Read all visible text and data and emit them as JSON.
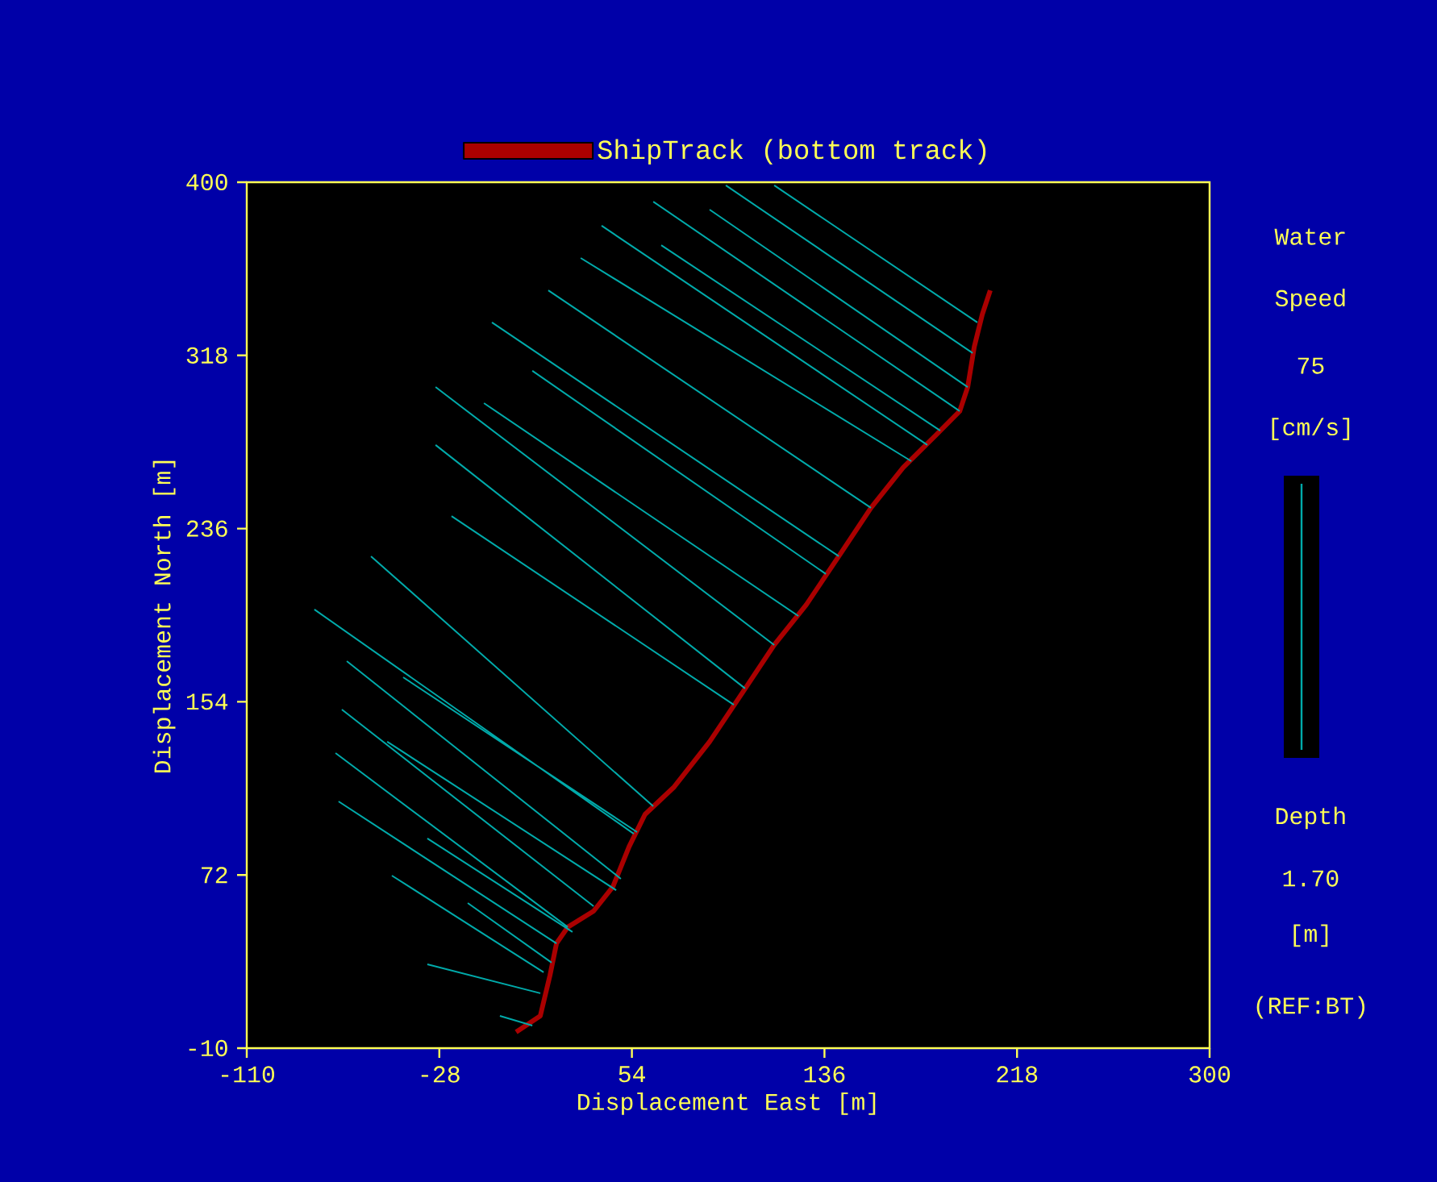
{
  "chart_data": {
    "type": "line",
    "xlabel": "Displacement East [m]",
    "ylabel": "Displacement North [m]",
    "xlim": [
      -110,
      300
    ],
    "ylim": [
      -10,
      400
    ],
    "xticks": [
      -110,
      -28,
      54,
      136,
      218,
      300
    ],
    "yticks": [
      -10,
      72,
      154,
      236,
      318,
      400
    ],
    "grid": false,
    "legend": "top",
    "series": [
      {
        "name": "ShipTrack (bottom track)",
        "color": "#aa0000",
        "x": [
          4.7,
          15.0,
          19.1,
          21.9,
          26.7,
          37.7,
          45.9,
          52.8,
          59.6,
          72.0,
          87.1,
          100.9,
          114.6,
          128.3,
          142.1,
          155.8,
          169.5,
          183.3,
          193.6,
          197.0,
          199.8,
          203.2,
          206.6
        ],
        "values": [
          -2.4,
          5.3,
          24.4,
          39.6,
          47.3,
          54.9,
          66.4,
          85.4,
          100.7,
          113.7,
          135.1,
          158.0,
          180.9,
          200.0,
          222.9,
          245.8,
          264.9,
          280.1,
          291.6,
          303.0,
          322.1,
          337.4,
          348.8
        ]
      },
      {
        "color": "#00aaaa",
        "x": [
          11.6,
          -2.2,
          null,
          15.0,
          -33.1,
          null,
          16.4,
          -48.2,
          null,
          19.8,
          -15.9,
          null,
          21.9,
          -70.9,
          null,
          26.7,
          -72.2,
          null,
          28.7,
          -33.1,
          null,
          37.7,
          -69.5,
          null,
          47.3,
          -50.2,
          null,
          49.3,
          -67.4,
          null,
          54.8,
          -81.2,
          null,
          56.2,
          -43.4,
          null,
          63.1,
          -57.1,
          null,
          97.4,
          -22.8,
          null,
          102.2,
          -29.6,
          null,
          114.6,
          -29.6,
          null,
          124.9,
          -9.0,
          null,
          136.6,
          11.6,
          null,
          142.1,
          -5.6,
          null,
          155.8,
          18.4,
          null,
          173.0,
          32.2,
          null,
          179.8,
          41.1,
          null,
          185.3,
          66.5,
          null,
          193.6,
          63.1,
          null,
          197.0,
          87.1,
          null,
          199.1,
          94.0,
          null,
          201.1,
          114.6
        ],
        "values": [
          0.7,
          5.3,
          null,
          16.0,
          29.7,
          null,
          25.9,
          71.7,
          null,
          30.5,
          58.7,
          null,
          39.6,
          106.8,
          null,
          47.3,
          129.7,
          null,
          45.0,
          89.3,
          null,
          57.2,
          150.3,
          null,
          64.8,
          135.1,
          null,
          70.2,
          173.2,
          null,
          91.5,
          197.7,
          null,
          92.3,
          165.6,
          null,
          104.5,
          222.9,
          null,
          152.6,
          241.9,
          null,
          160.3,
          275.6,
          null,
          180.9,
          303.0,
          null,
          194.6,
          295.4,
          null,
          214.5,
          310.7,
          null,
          222.9,
          333.6,
          null,
          245.8,
          348.8,
          null,
          267.9,
          364.1,
          null,
          275.6,
          379.4,
          null,
          282.4,
          370.2,
          null,
          291.6,
          390.8,
          null,
          303.0,
          387.0,
          null,
          319.1,
          398.5,
          null,
          333.6,
          398.5
        ]
      }
    ],
    "annotations": [
      "Water",
      "Speed",
      "75",
      "[cm/s]",
      "Depth",
      "1.70",
      "[m]",
      "(REF:BT)"
    ]
  }
}
